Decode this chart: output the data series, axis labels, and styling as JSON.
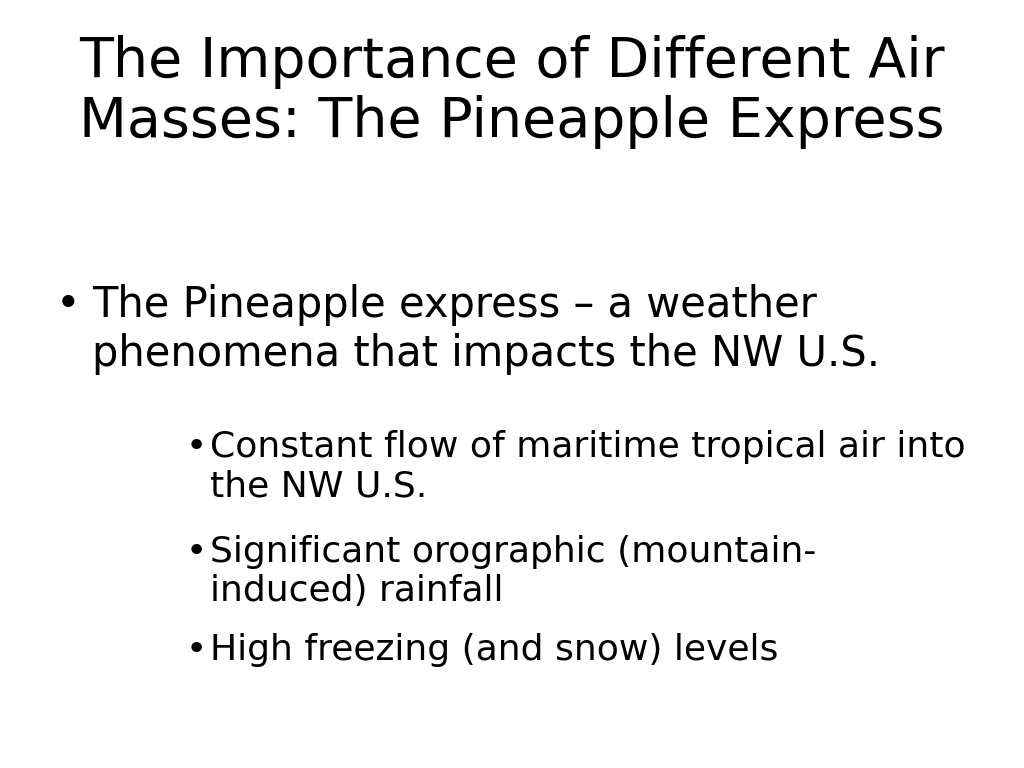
{
  "background_color": "#ffffff",
  "title_line1": "The Importance of Different Air",
  "title_line2": "Masses: The Pineapple Express",
  "title_fontsize": 40,
  "title_color": "#000000",
  "bullet1_text_line1": "The Pineapple express – a weather",
  "bullet1_text_line2": "phenomena that impacts the NW U.S.",
  "bullet1_fontsize": 30,
  "sub_bullets": [
    {
      "line1": "Constant flow of maritime tropical air into",
      "line2": "the NW U.S."
    },
    {
      "line1": "Significant orographic (mountain-",
      "line2": "induced) rainfall"
    },
    {
      "line1": "High freezing (and snow) levels",
      "line2": null
    }
  ],
  "sub_bullet_fontsize": 26,
  "text_color": "#000000",
  "font_family": "DejaVu Sans"
}
